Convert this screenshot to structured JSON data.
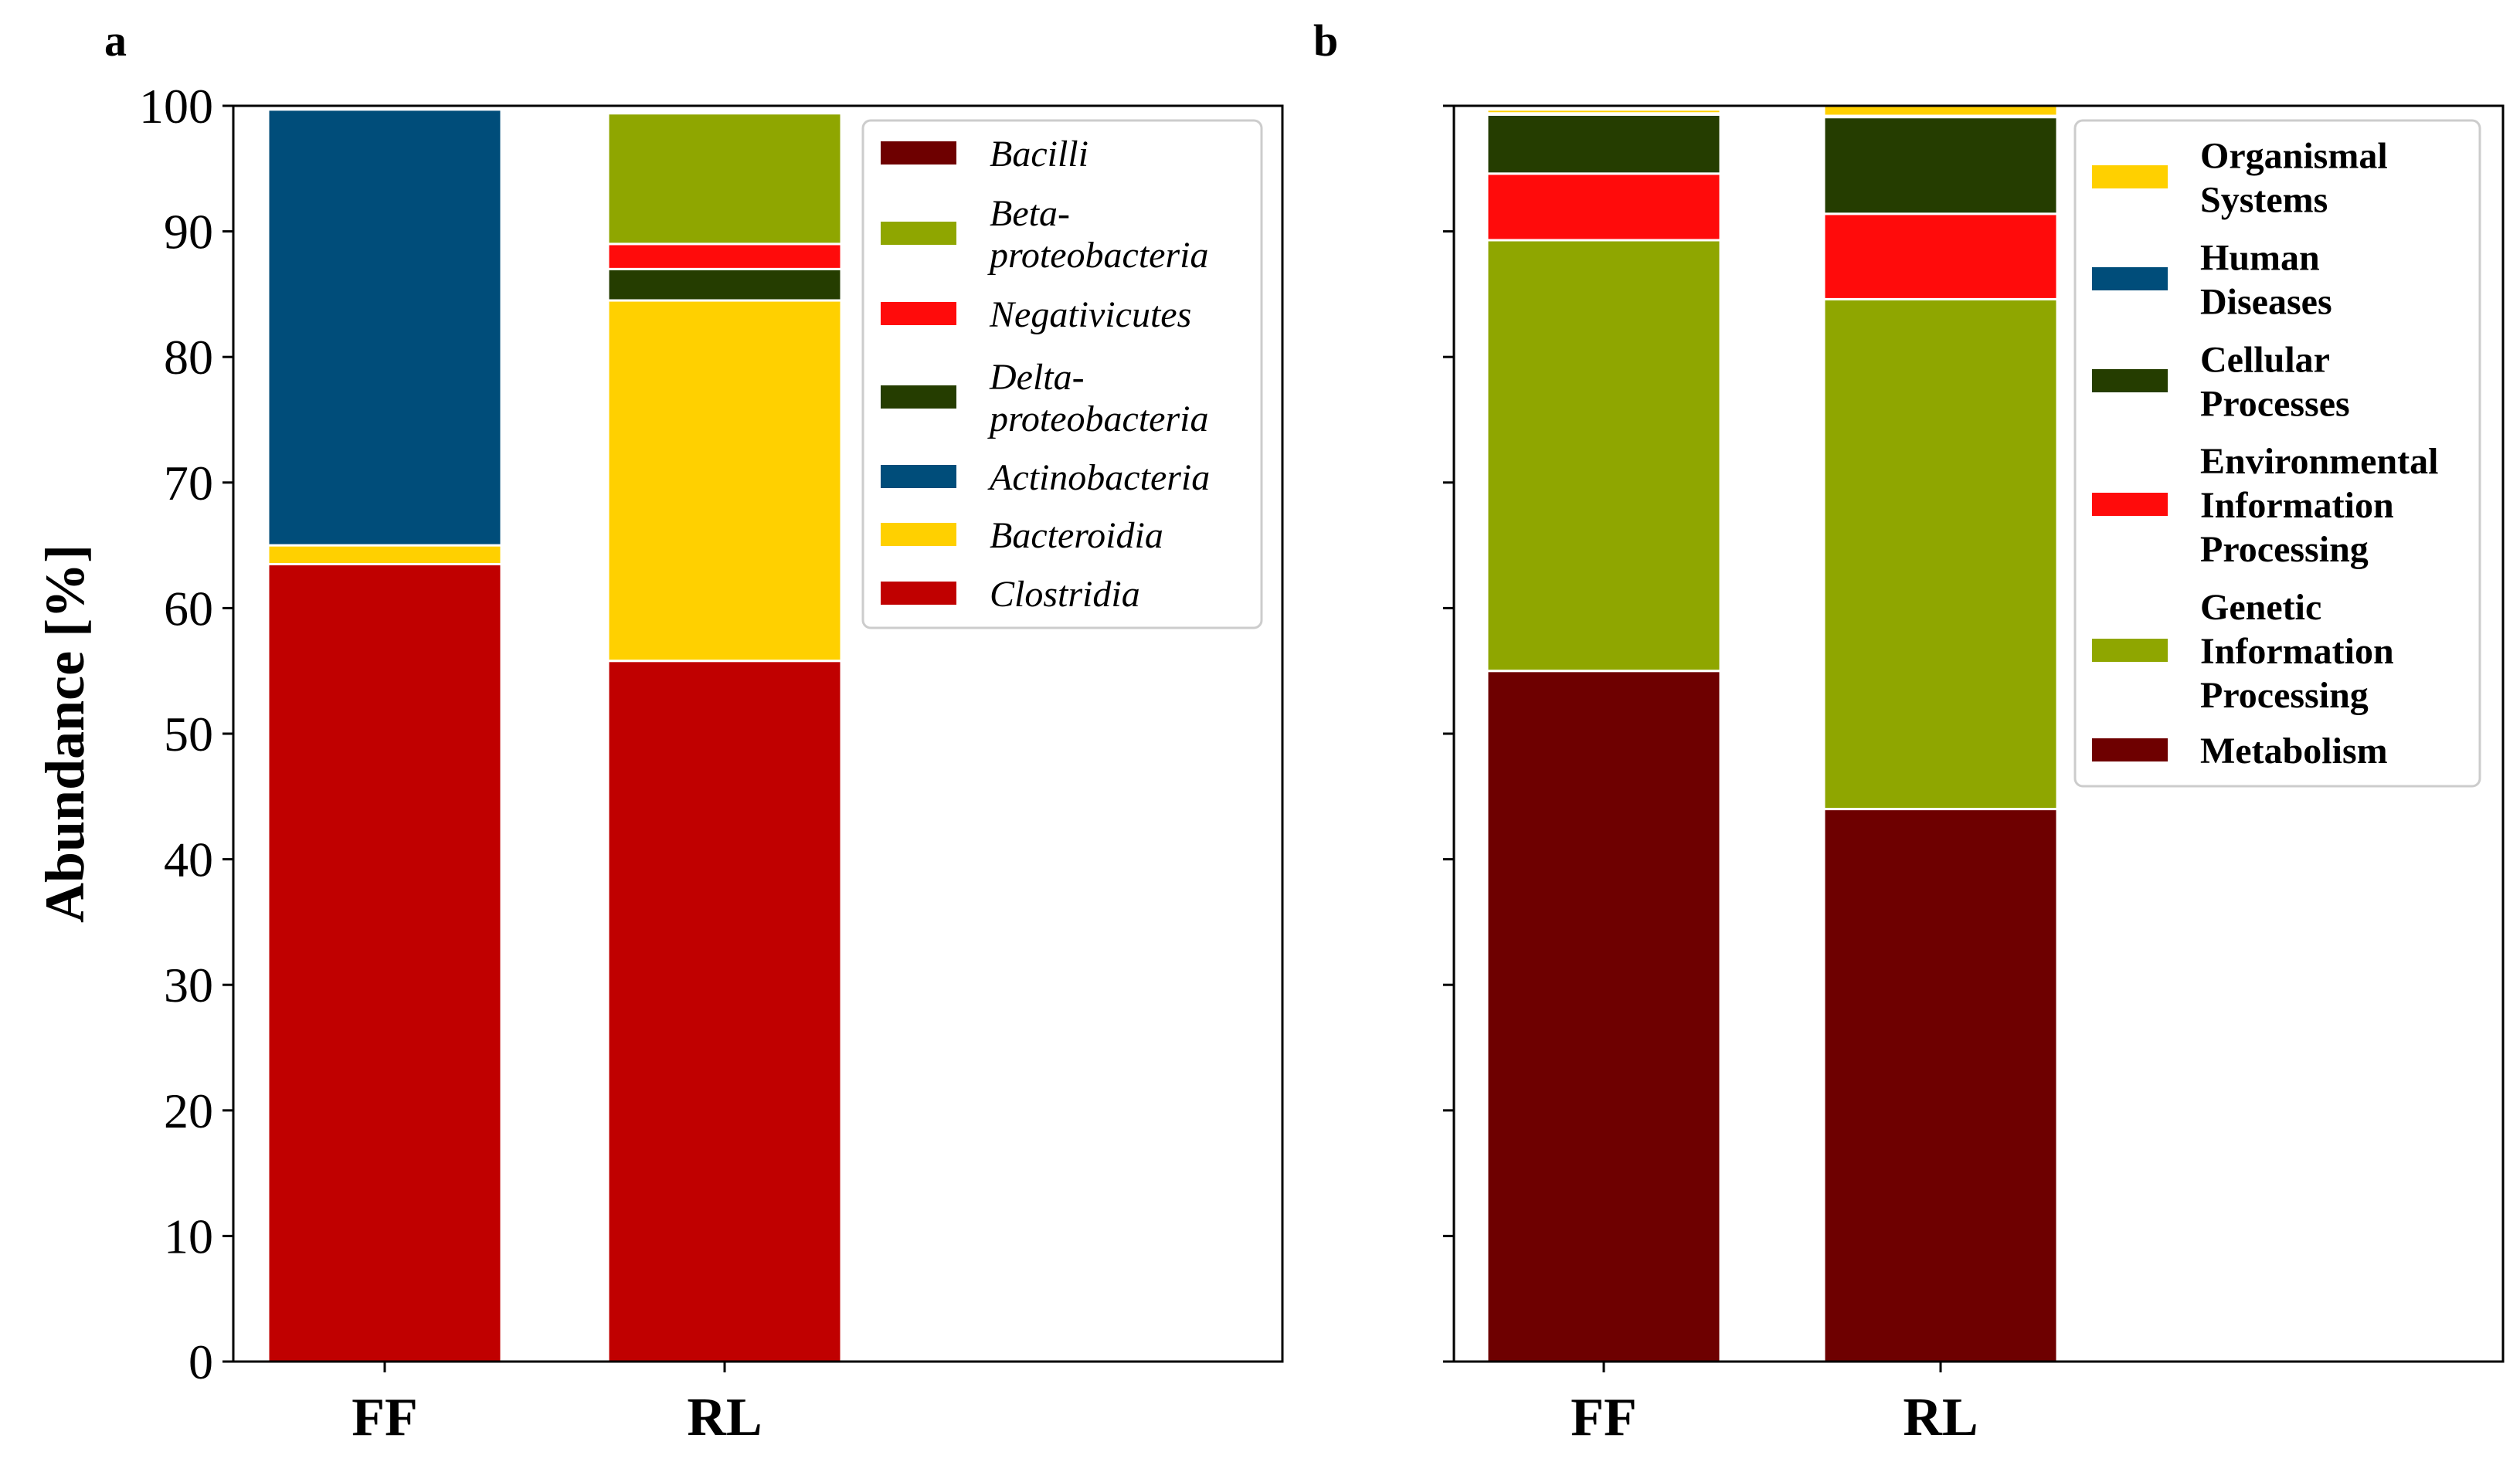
{
  "chart_data": [
    {
      "panel": "a",
      "type": "bar",
      "stacked": true,
      "categories": [
        "FF",
        "RL"
      ],
      "ylabel": "Abundance [%]",
      "xlabel": "",
      "ylim": [
        0,
        100
      ],
      "yticks": [
        0,
        10,
        20,
        30,
        40,
        50,
        60,
        70,
        80,
        90,
        100
      ],
      "legend_position": "top-right",
      "series": [
        {
          "name": "Clostridia",
          "color": "#C00000",
          "values": [
            63.5,
            55.8
          ]
        },
        {
          "name": "Bacteroidia",
          "color": "#FFD000",
          "values": [
            1.5,
            28.7
          ]
        },
        {
          "name": "Actinobacteria",
          "color": "#004D7A",
          "values": [
            34.7,
            0.0
          ]
        },
        {
          "name": "Delta-proteobacteria",
          "color": "#253D00",
          "values": [
            0.0,
            2.5
          ]
        },
        {
          "name": "Negativicutes",
          "color": "#FF0B0B",
          "values": [
            0.0,
            2.0
          ]
        },
        {
          "name": "Beta-proteobacteria",
          "color": "#8FA600",
          "values": [
            0.0,
            10.4
          ]
        },
        {
          "name": "Bacilli",
          "color": "#6E0000",
          "values": [
            0.0,
            0.0
          ]
        }
      ],
      "legend_order": [
        "Bacilli",
        "Beta-proteobacteria",
        "Negativicutes",
        "Delta-proteobacteria",
        "Actinobacteria",
        "Bacteroidia",
        "Clostridia"
      ],
      "legend_lines": {
        "Bacilli": [
          "Bacilli"
        ],
        "Beta-proteobacteria": [
          "Beta-",
          "proteobacteria"
        ],
        "Negativicutes": [
          "Negativicutes"
        ],
        "Delta-proteobacteria": [
          "Delta-",
          "proteobacteria"
        ],
        "Actinobacteria": [
          "Actinobacteria"
        ],
        "Bacteroidia": [
          "Bacteroidia"
        ],
        "Clostridia": [
          "Clostridia"
        ]
      }
    },
    {
      "panel": "b",
      "type": "bar",
      "stacked": true,
      "categories": [
        "FF",
        "RL"
      ],
      "ylabel": "",
      "xlabel": "",
      "ylim": [
        0,
        100
      ],
      "yticks": [
        0,
        10,
        20,
        30,
        40,
        50,
        60,
        70,
        80,
        90,
        100
      ],
      "legend_position": "top-right",
      "series": [
        {
          "name": "Metabolism",
          "color": "#6E0000",
          "values": [
            55.0,
            44.0
          ]
        },
        {
          "name": "Genetic Information Processing",
          "color": "#8FA600",
          "values": [
            34.3,
            40.6
          ]
        },
        {
          "name": "Environmental Information Processing",
          "color": "#FF0B0B",
          "values": [
            5.3,
            6.8
          ]
        },
        {
          "name": "Cellular Processes",
          "color": "#253D00",
          "values": [
            4.7,
            7.7
          ]
        },
        {
          "name": "Human Diseases",
          "color": "#004D7A",
          "values": [
            0.1,
            0.1
          ]
        },
        {
          "name": "Organismal Systems",
          "color": "#FFD000",
          "values": [
            0.3,
            0.9
          ]
        }
      ],
      "legend_order": [
        "Organismal Systems",
        "Human Diseases",
        "Cellular Processes",
        "Environmental Information Processing",
        "Genetic Information Processing",
        "Metabolism"
      ],
      "legend_lines": {
        "Organismal Systems": [
          "Organismal",
          "Systems"
        ],
        "Human Diseases": [
          "Human",
          "Diseases"
        ],
        "Cellular Processes": [
          "Cellular",
          "Processes"
        ],
        "Environmental Information Processing": [
          "Environmental",
          "Information",
          "Processing"
        ],
        "Genetic Information Processing": [
          "Genetic",
          "Information",
          "Processing"
        ],
        "Metabolism": [
          "Metabolism"
        ]
      }
    }
  ]
}
